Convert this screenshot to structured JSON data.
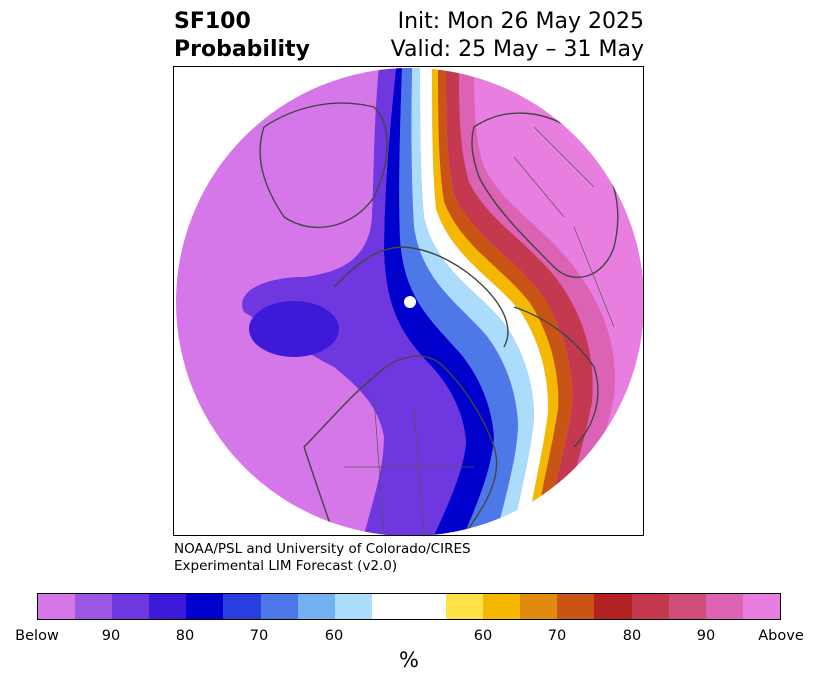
{
  "title": {
    "line1_left": "SF100",
    "line2_left": "Probability",
    "line1_right": "Init: Mon 26 May 2025",
    "line2_right": "Valid: 25 May – 31 May"
  },
  "credits": {
    "line1": "NOAA/PSL and University of Colorado/CIRES",
    "line2": "Experimental LIM Forecast (v2.0)"
  },
  "colorbar": {
    "units": "%",
    "colors": [
      "#d577e9",
      "#9d55e6",
      "#6e37df",
      "#3d1ad7",
      "#0000cc",
      "#2a3ddf",
      "#4d78e8",
      "#74b1f3",
      "#abdcfb",
      "#ffffff",
      "#ffe24a",
      "#f5b800",
      "#e08a10",
      "#c85516",
      "#b22222",
      "#c43950",
      "#cf4d7a",
      "#dc62b4",
      "#e87fe0"
    ],
    "tick_labels": [
      "Below",
      "90",
      "80",
      "70",
      "60",
      "60",
      "70",
      "80",
      "90",
      "Above"
    ]
  },
  "map": {
    "projection": "north-polar-stereographic",
    "field": "SF100 probability",
    "ocean_color": "#d577e9"
  }
}
